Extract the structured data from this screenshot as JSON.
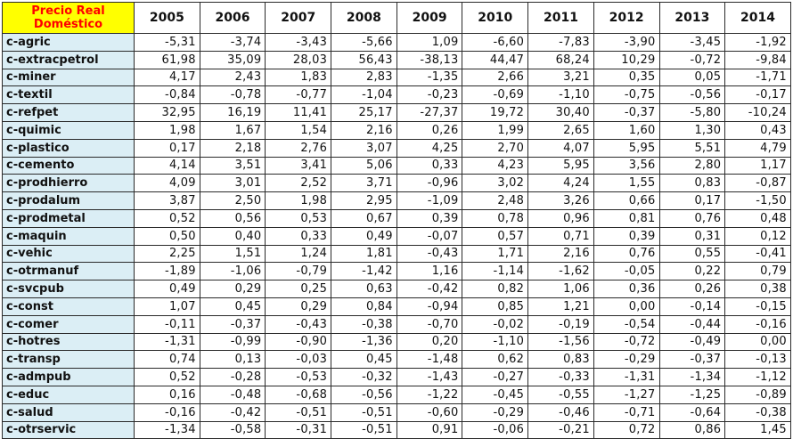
{
  "table": {
    "corner_label": "Precio Real Doméstico",
    "years": [
      "2005",
      "2006",
      "2007",
      "2008",
      "2009",
      "2010",
      "2011",
      "2012",
      "2013",
      "2014"
    ],
    "rows": [
      {
        "label": "c-agric",
        "values": [
          "-5,31",
          "-3,74",
          "-3,43",
          "-5,66",
          "1,09",
          "-6,60",
          "-7,83",
          "-3,90",
          "-3,45",
          "-1,92"
        ]
      },
      {
        "label": "c-extracpetrol",
        "values": [
          "61,98",
          "35,09",
          "28,03",
          "56,43",
          "-38,13",
          "44,47",
          "68,24",
          "10,29",
          "-0,72",
          "-9,84"
        ]
      },
      {
        "label": "c-miner",
        "values": [
          "4,17",
          "2,43",
          "1,83",
          "2,83",
          "-1,35",
          "2,66",
          "3,21",
          "0,35",
          "0,05",
          "-1,71"
        ]
      },
      {
        "label": "c-textil",
        "values": [
          "-0,84",
          "-0,78",
          "-0,77",
          "-1,04",
          "-0,23",
          "-0,69",
          "-1,10",
          "-0,75",
          "-0,56",
          "-0,17"
        ]
      },
      {
        "label": "c-refpet",
        "values": [
          "32,95",
          "16,19",
          "11,41",
          "25,17",
          "-27,37",
          "19,72",
          "30,40",
          "-0,37",
          "-5,80",
          "-10,24"
        ]
      },
      {
        "label": "c-quimic",
        "values": [
          "1,98",
          "1,67",
          "1,54",
          "2,16",
          "0,26",
          "1,99",
          "2,65",
          "1,60",
          "1,30",
          "0,43"
        ]
      },
      {
        "label": "c-plastico",
        "values": [
          "0,17",
          "2,18",
          "2,76",
          "3,07",
          "4,25",
          "2,70",
          "4,07",
          "5,95",
          "5,51",
          "4,79"
        ]
      },
      {
        "label": "c-cemento",
        "values": [
          "4,14",
          "3,51",
          "3,41",
          "5,06",
          "0,33",
          "4,23",
          "5,95",
          "3,56",
          "2,80",
          "1,17"
        ]
      },
      {
        "label": "c-prodhierro",
        "values": [
          "4,09",
          "3,01",
          "2,52",
          "3,71",
          "-0,96",
          "3,02",
          "4,24",
          "1,55",
          "0,83",
          "-0,87"
        ]
      },
      {
        "label": "c-prodalum",
        "values": [
          "3,87",
          "2,50",
          "1,98",
          "2,95",
          "-1,09",
          "2,48",
          "3,26",
          "0,66",
          "0,17",
          "-1,50"
        ]
      },
      {
        "label": "c-prodmetal",
        "values": [
          "0,52",
          "0,56",
          "0,53",
          "0,67",
          "0,39",
          "0,78",
          "0,96",
          "0,81",
          "0,76",
          "0,48"
        ]
      },
      {
        "label": "c-maquin",
        "values": [
          "0,50",
          "0,40",
          "0,33",
          "0,49",
          "-0,07",
          "0,57",
          "0,71",
          "0,39",
          "0,31",
          "0,12"
        ]
      },
      {
        "label": "c-vehic",
        "values": [
          "2,25",
          "1,51",
          "1,24",
          "1,81",
          "-0,43",
          "1,71",
          "2,16",
          "0,76",
          "0,55",
          "-0,41"
        ]
      },
      {
        "label": "c-otrmanuf",
        "values": [
          "-1,89",
          "-1,06",
          "-0,79",
          "-1,42",
          "1,16",
          "-1,14",
          "-1,62",
          "-0,05",
          "0,22",
          "0,79"
        ]
      },
      {
        "label": "c-svcpub",
        "values": [
          "0,49",
          "0,29",
          "0,25",
          "0,63",
          "-0,42",
          "0,82",
          "1,06",
          "0,36",
          "0,26",
          "0,38"
        ]
      },
      {
        "label": "c-const",
        "values": [
          "1,07",
          "0,45",
          "0,29",
          "0,84",
          "-0,94",
          "0,85",
          "1,21",
          "0,00",
          "-0,14",
          "-0,15"
        ]
      },
      {
        "label": "c-comer",
        "values": [
          "-0,11",
          "-0,37",
          "-0,43",
          "-0,38",
          "-0,70",
          "-0,02",
          "-0,19",
          "-0,54",
          "-0,44",
          "-0,16"
        ]
      },
      {
        "label": "c-hotres",
        "values": [
          "-1,31",
          "-0,99",
          "-0,90",
          "-1,36",
          "0,20",
          "-1,10",
          "-1,56",
          "-0,72",
          "-0,49",
          "0,00"
        ]
      },
      {
        "label": "c-transp",
        "values": [
          "0,74",
          "0,13",
          "-0,03",
          "0,45",
          "-1,48",
          "0,62",
          "0,83",
          "-0,29",
          "-0,37",
          "-0,13"
        ]
      },
      {
        "label": "c-admpub",
        "values": [
          "0,52",
          "-0,28",
          "-0,53",
          "-0,32",
          "-1,43",
          "-0,27",
          "-0,33",
          "-1,31",
          "-1,34",
          "-1,12"
        ]
      },
      {
        "label": "c-educ",
        "values": [
          "0,16",
          "-0,48",
          "-0,68",
          "-0,56",
          "-1,22",
          "-0,45",
          "-0,55",
          "-1,27",
          "-1,25",
          "-0,89"
        ]
      },
      {
        "label": "c-salud",
        "values": [
          "-0,16",
          "-0,42",
          "-0,51",
          "-0,51",
          "-0,60",
          "-0,29",
          "-0,46",
          "-0,71",
          "-0,64",
          "-0,38"
        ]
      },
      {
        "label": "c-otrservic",
        "values": [
          "-1,34",
          "-0,58",
          "-0,31",
          "-0,51",
          "0,91",
          "-0,06",
          "-0,21",
          "0,72",
          "0,86",
          "1,45"
        ]
      }
    ]
  },
  "colors": {
    "corner_bg": "#ffff00",
    "corner_text": "#ff0000",
    "label_bg": "#dbeef5"
  }
}
